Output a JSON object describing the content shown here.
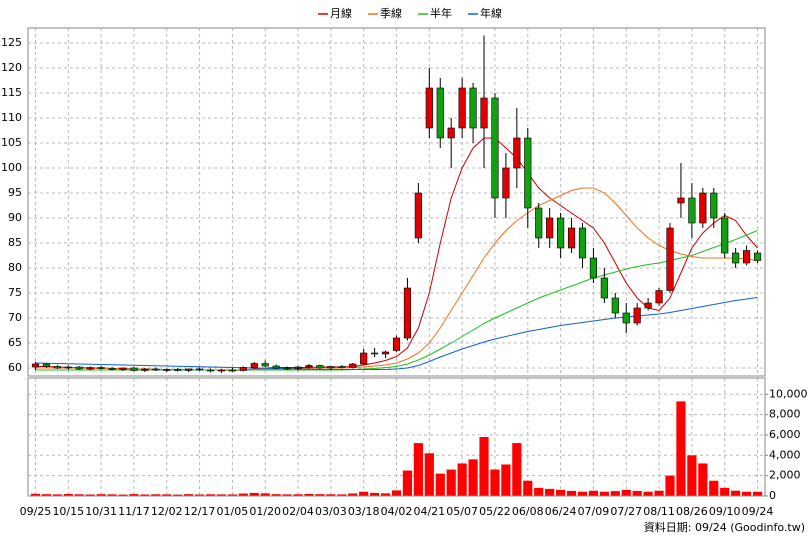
{
  "chart_data": {
    "type": "candlestick",
    "categories": [
      "09/25",
      null,
      null,
      "10/15",
      null,
      null,
      "10/31",
      null,
      null,
      "11/17",
      null,
      null,
      "12/02",
      null,
      null,
      "12/17",
      null,
      null,
      "01/05",
      null,
      null,
      "01/20",
      null,
      null,
      "02/04",
      null,
      null,
      "03/03",
      null,
      null,
      "03/18",
      null,
      null,
      "04/02",
      null,
      null,
      "04/21",
      null,
      null,
      "05/07",
      null,
      null,
      "05/22",
      null,
      null,
      "06/08",
      null,
      null,
      "06/24",
      null,
      null,
      "07/09",
      null,
      null,
      "07/27",
      null,
      null,
      "08/11",
      null,
      null,
      "08/26",
      null,
      null,
      "09/10",
      null,
      null,
      "09/24"
    ],
    "open": [
      60.2,
      60.8,
      60.3,
      60.0,
      60.2,
      59.8,
      60.1,
      59.9,
      59.7,
      60.0,
      59.5,
      59.8,
      59.6,
      59.7,
      59.5,
      59.8,
      59.6,
      59.4,
      59.6,
      59.5,
      60.1,
      60.9,
      60.4,
      60.0,
      59.9,
      60.2,
      60.5,
      60.0,
      60.3,
      60.1,
      60.8,
      63.0,
      62.8,
      63.5,
      66.0,
      86.0,
      108.0,
      116.0,
      106.0,
      108.0,
      116.0,
      108.0,
      114.0,
      94.0,
      100.0,
      106.0,
      92.0,
      86.0,
      90.0,
      84.0,
      88.0,
      82.0,
      78.0,
      74.0,
      71.0,
      69.0,
      72.0,
      73.0,
      75.5,
      93.0,
      94.0,
      89.0,
      95.0,
      90.0,
      83.0,
      81.0,
      83.0
    ],
    "high": [
      61.2,
      61.0,
      60.6,
      60.5,
      60.4,
      60.3,
      60.4,
      60.2,
      60.1,
      60.2,
      60.0,
      60.1,
      59.9,
      60.0,
      59.9,
      60.1,
      59.9,
      59.8,
      60.0,
      60.3,
      61.2,
      61.5,
      60.7,
      60.3,
      60.4,
      60.8,
      60.7,
      60.4,
      60.6,
      61.0,
      63.8,
      64.0,
      63.5,
      66.5,
      78.0,
      97.0,
      120.0,
      118.0,
      110.0,
      118.0,
      117.0,
      126.5,
      115.0,
      103.0,
      112.0,
      108.0,
      93.0,
      92.0,
      91.0,
      90.0,
      89.0,
      84.0,
      80.0,
      75.0,
      73.0,
      73.0,
      74.0,
      76.0,
      89.0,
      101.0,
      97.0,
      96.0,
      96.0,
      91.0,
      84.0,
      84.5,
      83.5
    ],
    "low": [
      59.6,
      60.0,
      59.8,
      59.7,
      59.6,
      59.5,
      59.7,
      59.5,
      59.4,
      59.3,
      59.2,
      59.4,
      59.2,
      59.3,
      59.2,
      59.4,
      59.1,
      59.0,
      59.2,
      59.3,
      59.9,
      60.2,
      59.8,
      59.6,
      59.5,
      59.9,
      59.8,
      59.6,
      59.9,
      59.9,
      60.6,
      62.2,
      62.0,
      63.2,
      65.5,
      85.0,
      106.0,
      104.0,
      100.0,
      106.0,
      105.0,
      100.0,
      90.0,
      90.0,
      96.0,
      88.0,
      84.0,
      84.0,
      82.0,
      83.0,
      80.0,
      77.0,
      73.0,
      70.0,
      67.0,
      68.5,
      71.5,
      72.5,
      75.0,
      90.0,
      86.0,
      88.0,
      88.0,
      82.0,
      80.0,
      80.5,
      81.0
    ],
    "close": [
      60.8,
      60.3,
      60.0,
      60.2,
      59.8,
      60.1,
      59.9,
      59.7,
      60.0,
      59.5,
      59.8,
      59.6,
      59.7,
      59.5,
      59.8,
      59.6,
      59.4,
      59.6,
      59.5,
      60.1,
      60.9,
      60.4,
      60.0,
      59.9,
      60.2,
      60.5,
      60.0,
      60.3,
      60.1,
      60.8,
      63.0,
      62.8,
      63.2,
      66.0,
      76.0,
      95.0,
      116.0,
      106.0,
      108.0,
      116.0,
      108.0,
      114.0,
      94.0,
      100.0,
      106.0,
      92.0,
      86.0,
      90.0,
      84.0,
      88.0,
      82.0,
      78.0,
      74.0,
      71.0,
      69.0,
      72.0,
      73.0,
      75.5,
      88.0,
      94.0,
      89.0,
      95.0,
      90.0,
      83.0,
      81.0,
      83.5,
      81.5
    ],
    "up_color": "#e00000",
    "down_color": "#10a010",
    "series": [
      {
        "name": "月線",
        "color": "#cc0000",
        "values": [
          60.3,
          60.3,
          60.2,
          60.1,
          60.1,
          60.0,
          60.0,
          59.9,
          59.9,
          59.8,
          59.8,
          59.7,
          59.7,
          59.7,
          59.6,
          59.6,
          59.6,
          59.6,
          59.5,
          59.6,
          59.8,
          60.0,
          60.1,
          60.1,
          60.1,
          60.1,
          60.2,
          60.2,
          60.2,
          60.3,
          60.6,
          61.0,
          61.5,
          62.3,
          64.0,
          68.0,
          75.0,
          85.0,
          94.0,
          100.0,
          104.0,
          106.0,
          106.0,
          104.0,
          102.0,
          99.0,
          96.0,
          94.0,
          92.5,
          91.0,
          89.5,
          88.0,
          85.0,
          81.0,
          77.0,
          74.0,
          72.0,
          71.5,
          74.0,
          79.0,
          84.0,
          87.0,
          89.0,
          90.5,
          89.5,
          86.5,
          84.0
        ]
      },
      {
        "name": "季線",
        "color": "#f07020",
        "values": [
          60.0,
          60.0,
          60.0,
          60.0,
          60.0,
          59.9,
          59.9,
          59.9,
          59.8,
          59.8,
          59.8,
          59.7,
          59.7,
          59.7,
          59.7,
          59.6,
          59.6,
          59.6,
          59.6,
          59.6,
          59.7,
          59.8,
          59.8,
          59.9,
          59.9,
          59.9,
          60.0,
          60.0,
          60.0,
          60.1,
          60.2,
          60.4,
          60.6,
          61.0,
          61.8,
          63.0,
          65.0,
          68.0,
          71.5,
          75.0,
          78.5,
          82.0,
          85.0,
          87.5,
          89.5,
          91.0,
          92.5,
          93.5,
          94.5,
          95.5,
          96.0,
          96.0,
          95.0,
          93.0,
          90.5,
          88.0,
          86.0,
          84.5,
          83.5,
          82.8,
          82.3,
          82.0,
          82.0,
          82.0,
          82.0,
          81.8,
          81.5
        ]
      },
      {
        "name": "半年",
        "color": "#20c020",
        "values": [
          59.6,
          59.6,
          59.6,
          59.6,
          59.6,
          59.6,
          59.6,
          59.6,
          59.6,
          59.6,
          59.6,
          59.6,
          59.6,
          59.6,
          59.6,
          59.6,
          59.6,
          59.6,
          59.6,
          59.6,
          59.6,
          59.6,
          59.6,
          59.6,
          59.6,
          59.6,
          59.6,
          59.6,
          59.6,
          59.7,
          59.8,
          59.9,
          60.1,
          60.3,
          60.8,
          61.6,
          62.6,
          63.8,
          65.0,
          66.3,
          67.6,
          68.9,
          70.0,
          71.0,
          72.0,
          73.0,
          74.0,
          74.8,
          75.6,
          76.4,
          77.2,
          78.0,
          78.6,
          79.2,
          79.8,
          80.3,
          80.7,
          81.0,
          81.5,
          82.0,
          82.5,
          83.3,
          84.1,
          84.9,
          85.7,
          86.6,
          87.5
        ]
      },
      {
        "name": "年線",
        "color": "#1060d0",
        "values": [
          61.0,
          60.95,
          60.9,
          60.85,
          60.8,
          60.75,
          60.7,
          60.65,
          60.6,
          60.55,
          60.5,
          60.45,
          60.4,
          60.35,
          60.3,
          60.25,
          60.2,
          60.15,
          60.1,
          60.05,
          60.0,
          59.95,
          59.9,
          59.85,
          59.8,
          59.75,
          59.7,
          59.7,
          59.7,
          59.7,
          59.7,
          59.7,
          59.7,
          59.8,
          60.0,
          60.5,
          61.3,
          62.2,
          63.0,
          63.8,
          64.5,
          65.2,
          65.8,
          66.3,
          66.8,
          67.3,
          67.7,
          68.1,
          68.5,
          68.8,
          69.1,
          69.4,
          69.7,
          70.0,
          70.2,
          70.4,
          70.6,
          70.8,
          71.1,
          71.5,
          71.9,
          72.3,
          72.7,
          73.1,
          73.5,
          73.8,
          74.1
        ]
      }
    ],
    "ylim": [
      58.4,
      128
    ],
    "yticks": [
      60,
      65,
      70,
      75,
      80,
      85,
      90,
      95,
      100,
      105,
      110,
      115,
      120,
      125
    ],
    "grid": true,
    "volume": {
      "color": "#ff0000",
      "values": [
        220,
        180,
        160,
        200,
        170,
        150,
        180,
        160,
        140,
        190,
        150,
        170,
        160,
        140,
        180,
        150,
        170,
        160,
        150,
        240,
        300,
        260,
        180,
        160,
        170,
        200,
        180,
        170,
        160,
        250,
        420,
        300,
        260,
        550,
        2500,
        5200,
        4200,
        2200,
        2600,
        3200,
        3600,
        5800,
        2600,
        3100,
        5200,
        1500,
        800,
        700,
        600,
        500,
        420,
        520,
        420,
        480,
        600,
        500,
        420,
        520,
        2000,
        9300,
        4000,
        3200,
        1500,
        800,
        520,
        420,
        420
      ],
      "ylim": [
        0,
        11600
      ],
      "yticks": [
        0,
        {
          "value": 2000,
          "label": "2,000"
        },
        {
          "value": 4000,
          "label": "4,000"
        },
        {
          "value": 6000,
          "label": "6,000"
        },
        {
          "value": 8000,
          "label": "8,000"
        },
        {
          "value": 10000,
          "label": "10,000"
        }
      ]
    },
    "footer": "資料日期: 09/24 (Goodinfo.tw)"
  }
}
